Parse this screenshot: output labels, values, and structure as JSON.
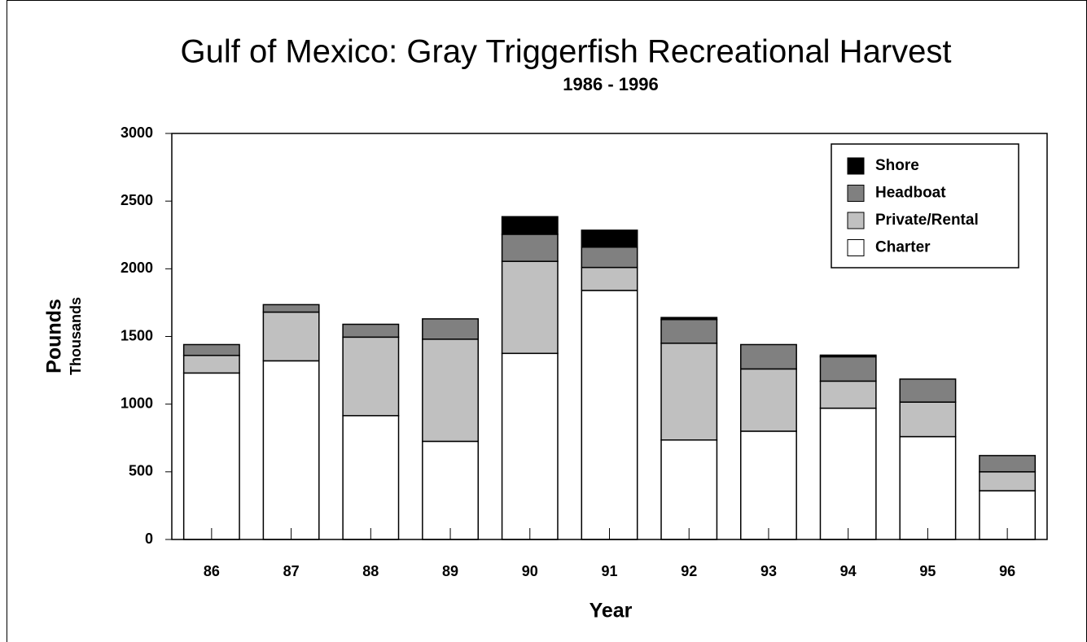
{
  "chart_data": {
    "type": "stacked_bar",
    "title": "Gulf of Mexico: Gray Triggerfish Recreational Harvest",
    "subtitle": "1986 - 1996",
    "y_label": "Pounds",
    "y_sublabel": "Thousands",
    "x_label": "Year",
    "categories": [
      "86",
      "87",
      "88",
      "89",
      "90",
      "91",
      "92",
      "93",
      "94",
      "95",
      "96"
    ],
    "series": [
      {
        "name": "Charter",
        "color": "#ffffff",
        "values": [
          1230,
          1320,
          915,
          725,
          1375,
          1840,
          735,
          800,
          970,
          760,
          360
        ]
      },
      {
        "name": "Private/Rental",
        "color": "#c0c0c0",
        "values": [
          130,
          360,
          580,
          755,
          680,
          170,
          715,
          460,
          200,
          255,
          140
        ]
      },
      {
        "name": "Headboat",
        "color": "#808080",
        "values": [
          80,
          55,
          95,
          150,
          200,
          150,
          175,
          180,
          180,
          170,
          120
        ]
      },
      {
        "name": "Shore",
        "color": "#000000",
        "values": [
          0,
          0,
          0,
          0,
          130,
          125,
          15,
          0,
          12,
          0,
          0
        ]
      }
    ],
    "ylim": [
      0,
      3000
    ],
    "yticks": [
      0,
      500,
      1000,
      1500,
      2000,
      2500,
      3000
    ],
    "legend": "top-right"
  }
}
